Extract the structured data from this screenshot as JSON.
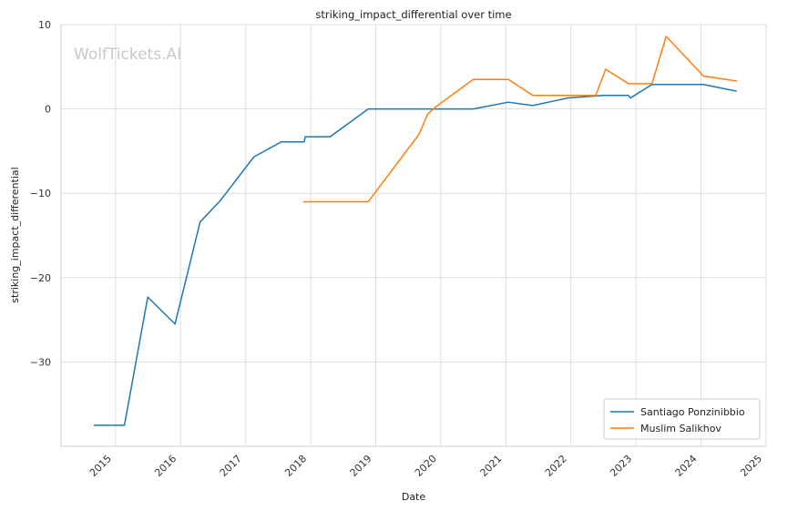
{
  "chart_data": {
    "type": "line",
    "title": "striking_impact_differential over time",
    "xlabel": "Date",
    "ylabel": "striking_impact_differential",
    "watermark": "WolfTickets.AI",
    "x_range": [
      "2014-03-01",
      "2025-01-01"
    ],
    "y_range": [
      -40.0,
      10.0
    ],
    "x_ticks": [
      "2015",
      "2016",
      "2017",
      "2018",
      "2019",
      "2020",
      "2021",
      "2022",
      "2023",
      "2024",
      "2025"
    ],
    "y_ticks": [
      10,
      0,
      -10,
      -20,
      -30
    ],
    "grid": true,
    "legend_position": "bottom-right",
    "series": [
      {
        "name": "Santiago Ponzinibbio",
        "color": "#1f77b4",
        "points": [
          [
            "2014-09-01",
            -37.5
          ],
          [
            "2015-02-20",
            -37.5
          ],
          [
            "2015-07-01",
            -22.3
          ],
          [
            "2015-12-01",
            -25.5
          ],
          [
            "2016-04-20",
            -13.4
          ],
          [
            "2016-08-10",
            -10.9
          ],
          [
            "2017-02-15",
            -5.7
          ],
          [
            "2017-07-20",
            -3.9
          ],
          [
            "2017-11-25",
            -3.9
          ],
          [
            "2017-12-01",
            -3.3
          ],
          [
            "2018-04-20",
            -3.3
          ],
          [
            "2018-11-20",
            0.0
          ],
          [
            "2020-07-01",
            0.0
          ],
          [
            "2021-01-15",
            0.8
          ],
          [
            "2021-06-01",
            0.4
          ],
          [
            "2021-12-15",
            1.3
          ],
          [
            "2022-07-01",
            1.6
          ],
          [
            "2022-11-20",
            1.6
          ],
          [
            "2022-12-01",
            1.3
          ],
          [
            "2023-04-01",
            2.9
          ],
          [
            "2024-01-15",
            2.9
          ],
          [
            "2024-07-20",
            2.1
          ]
        ]
      },
      {
        "name": "Muslim Salikhov",
        "color": "#ff7f0e",
        "points": [
          [
            "2017-11-20",
            -11.0
          ],
          [
            "2018-11-20",
            -11.0
          ],
          [
            "2019-09-01",
            -3.0
          ],
          [
            "2019-10-20",
            -0.6
          ],
          [
            "2019-12-01",
            0.2
          ],
          [
            "2020-07-01",
            3.5
          ],
          [
            "2021-01-15",
            3.5
          ],
          [
            "2021-06-01",
            1.6
          ],
          [
            "2022-05-20",
            1.6
          ],
          [
            "2022-07-15",
            4.7
          ],
          [
            "2022-11-20",
            3.0
          ],
          [
            "2023-04-01",
            3.0
          ],
          [
            "2023-06-20",
            8.6
          ],
          [
            "2024-01-15",
            3.9
          ],
          [
            "2024-07-20",
            3.3
          ]
        ]
      }
    ]
  }
}
